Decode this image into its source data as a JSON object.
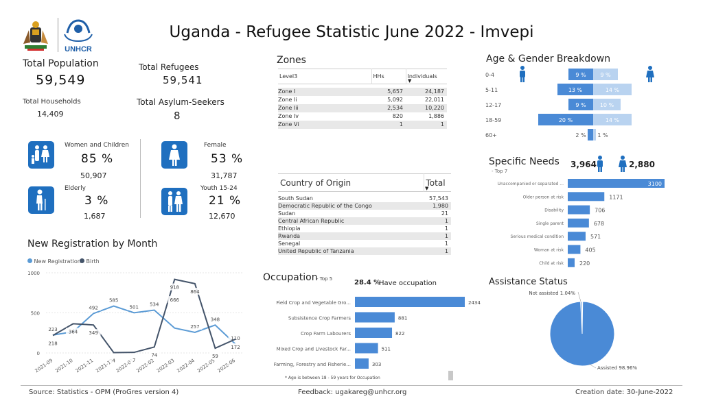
{
  "header": {
    "title": "Uganda - Refugee Statistic June 2022 - Imvepi",
    "unhcr_logo_text": "UNHCR"
  },
  "kpis": {
    "total_population_label": "Total Population",
    "total_population_value": "59,549",
    "total_refugees_label": "Total Refugees",
    "total_refugees_value": "59,541",
    "total_households_label": "Total Households",
    "total_households_value": "14,409",
    "total_asylum_label": "Total Asylum-Seekers",
    "total_asylum_value": "8"
  },
  "demographics": {
    "women_children": {
      "label": "Women and Children",
      "percent": "85 %",
      "count": "50,907"
    },
    "female": {
      "label": "Female",
      "percent": "53 %",
      "count": "31,787"
    },
    "elderly": {
      "label": "Elderly",
      "percent": "3 %",
      "count": "1,687"
    },
    "youth": {
      "label": "Youth 15-24",
      "percent": "21 %",
      "count": "12,670"
    }
  },
  "zones": {
    "title": "Zones",
    "headers": [
      "Level3",
      "HHs",
      "Individuals"
    ],
    "rows": [
      [
        "Zone I",
        "5,657",
        "24,187"
      ],
      [
        "Zone Ii",
        "5,092",
        "22,011"
      ],
      [
        "Zone Iii",
        "2,534",
        "10,220"
      ],
      [
        "Zone Iv",
        "820",
        "1,886"
      ],
      [
        "Zone Vi",
        "1",
        "1"
      ]
    ]
  },
  "origin": {
    "headers": [
      "Country of Origin",
      "Total"
    ],
    "rows": [
      [
        "South Sudan",
        "57,543"
      ],
      [
        "Democratic Republic of the Congo",
        "1,980"
      ],
      [
        "Sudan",
        "21"
      ],
      [
        "Central African Republic",
        "1"
      ],
      [
        "Ethiopia",
        "1"
      ],
      [
        "Rwanda",
        "1"
      ],
      [
        "Senegal",
        "1"
      ],
      [
        "United Republic of Tanzania",
        "1"
      ]
    ]
  },
  "age_gender": {
    "title": "Age & Gender Breakdown",
    "colors": {
      "male": "#4a8ad6",
      "female": "#b9d3f0"
    },
    "rows": [
      {
        "age": "0-4",
        "male": 9,
        "female": 9,
        "male_label": "9 %",
        "female_label": "9 %"
      },
      {
        "age": "5-11",
        "male": 13,
        "female": 14,
        "male_label": "13 %",
        "female_label": "14 %"
      },
      {
        "age": "12-17",
        "male": 9,
        "female": 10,
        "male_label": "9 %",
        "female_label": "10 %"
      },
      {
        "age": "18-59",
        "male": 20,
        "female": 14,
        "male_label": "20 %",
        "female_label": "14 %"
      },
      {
        "age": "60+",
        "male": 2,
        "female": 1,
        "male_label": "2 %",
        "female_label": "1 %"
      }
    ]
  },
  "specific_needs": {
    "title": "Specific Needs",
    "subtitle": "- Top 7",
    "male_count": "3,964",
    "female_count": "2,880",
    "items": [
      {
        "label": "Unaccompanied or separated ...",
        "value": 3100,
        "value_label": "3100"
      },
      {
        "label": "Older person at risk",
        "value": 1171,
        "value_label": "1171"
      },
      {
        "label": "Disability",
        "value": 706,
        "value_label": "706"
      },
      {
        "label": "Single parent",
        "value": 678,
        "value_label": "678"
      },
      {
        "label": "Serious medical condition",
        "value": 571,
        "value_label": "571"
      },
      {
        "label": "Woman at risk",
        "value": 405,
        "value_label": "405"
      },
      {
        "label": "Child at risk",
        "value": 220,
        "value_label": "220"
      }
    ]
  },
  "occupation": {
    "title": "Occupation",
    "subtitle": "- Top 5",
    "have_pct": "28.4 %",
    "have_label": "Have occupation",
    "note": "* Age is between 18 - 59 years for Occupation",
    "items": [
      {
        "label": "Field Crop and Vegetable Gro...",
        "value": 2434,
        "value_label": "2434"
      },
      {
        "label": "Subsistence Crop Farmers",
        "value": 881,
        "value_label": "881"
      },
      {
        "label": "Crop Farm Labourers",
        "value": 822,
        "value_label": "822"
      },
      {
        "label": "Mixed Crop and Livestock Far...",
        "value": 511,
        "value_label": "511"
      },
      {
        "label": "Farming, Forestry and Fisherie...",
        "value": 303,
        "value_label": "303"
      }
    ]
  },
  "assistance": {
    "title": "Assistance Status",
    "slices": [
      {
        "label": "Not assisted 1.04%",
        "value": 1.04
      },
      {
        "label": "Assisted 98.96%",
        "value": 98.96
      }
    ]
  },
  "chart_data": {
    "type": "line",
    "title": "New Registration by Month",
    "categories": [
      "2021-09",
      "2021-10",
      "2021-11",
      "2021-12",
      "2022-01",
      "2022-02",
      "2022-03",
      "2022-04",
      "2022-05",
      "2022-06"
    ],
    "series": [
      {
        "name": "New Registration",
        "values": [
          223,
          264,
          492,
          585,
          501,
          534,
          310,
          257,
          348,
          110
        ],
        "labels": [
          "223",
          "",
          "492",
          "585",
          "501",
          "534",
          "",
          "257",
          "348",
          "110"
        ],
        "color": "#5b9bd5"
      },
      {
        "name": "Birth",
        "values": [
          218,
          364,
          349,
          4,
          7,
          74,
          918,
          864,
          59,
          172
        ],
        "labels": [
          "218",
          "364",
          "349",
          "4",
          "7",
          "74",
          "918",
          "864",
          "59",
          "172"
        ],
        "color": "#44546a"
      }
    ],
    "extra_labels": [
      "666"
    ],
    "ylim": [
      0,
      1000
    ],
    "yticks": [
      "0",
      "500",
      "1000"
    ]
  },
  "footer": {
    "source": "Source: Statistics - OPM (ProGres version 4)",
    "feedback": "Feedback: ugakareg@unhcr.org",
    "creation": "Creation date: 30-June-2022"
  }
}
